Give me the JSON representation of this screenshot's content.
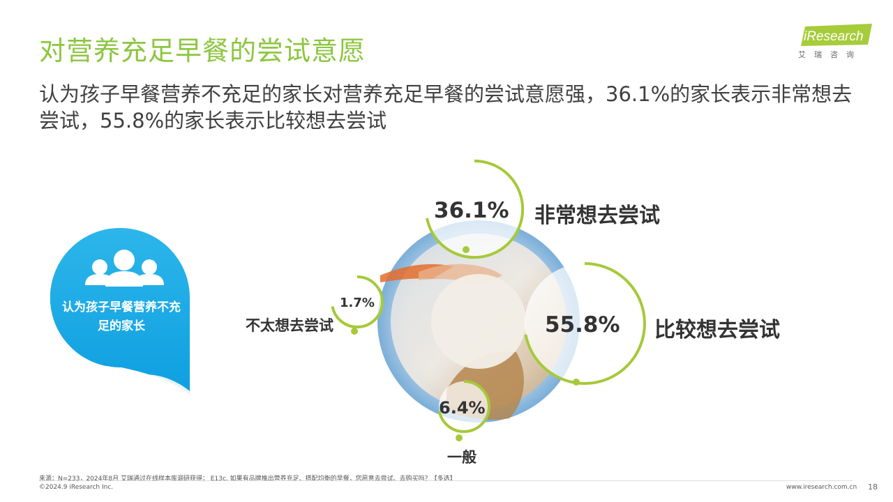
{
  "header": {
    "title": "对营养充足早餐的尝试意愿",
    "subtitle": "认为孩子早餐营养不充足的家长对营养充足早餐的尝试意愿强，36.1%的家长表示非常想去尝试，55.8%的家长表示比较想去尝试"
  },
  "logo": {
    "brand": "iResearch",
    "sub": "艾瑞咨询",
    "color": "#a6cc3a"
  },
  "group_label": "认为孩子早餐营养不充足的家长",
  "chart_data": {
    "type": "pie",
    "categories": [
      "非常想去尝试",
      "比较想去尝试",
      "一般",
      "不太想去尝试"
    ],
    "values": [
      36.1,
      55.8,
      6.4,
      1.7
    ],
    "value_labels": [
      "36.1%",
      "55.8%",
      "6.4%",
      "1.7%"
    ],
    "colors": {
      "accent": "#a6c93a",
      "ring": "#7aaed8",
      "badge": "#1aa9e6"
    }
  },
  "footer": {
    "source": "来源：N=233，2024年8月 艾瑞通过在线样本库调研获得； E13c. 如果有品牌推出营养充足、搭配均衡的早餐，您愿意去尝试、去购买吗？【多选】",
    "copyright": "©2024.9 iResearch Inc.",
    "url": "www.iresearch.com.cn",
    "page": "18"
  }
}
